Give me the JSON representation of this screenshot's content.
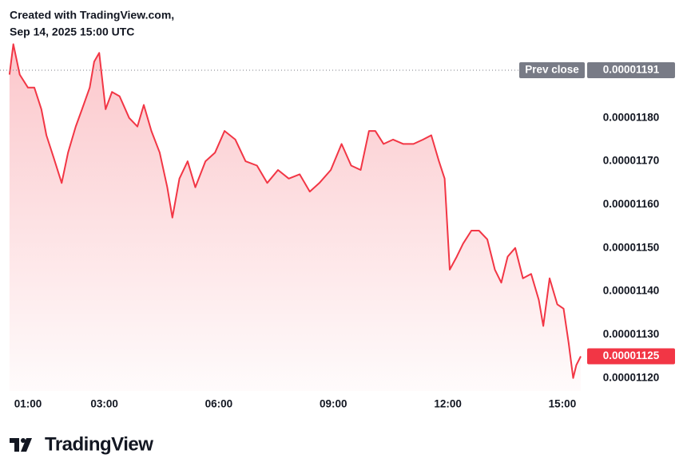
{
  "chart_data": {
    "type": "line",
    "title": "Created with TradingView.com,",
    "subtitle": "Sep 14, 2025 15:00 UTC",
    "watermark": "TradingView",
    "x": [
      "00:31",
      "00:37",
      "00:47",
      "01:00",
      "01:10",
      "01:21",
      "01:29",
      "01:40",
      "01:53",
      "02:03",
      "02:15",
      "02:25",
      "02:37",
      "02:44",
      "02:52",
      "03:02",
      "03:12",
      "03:24",
      "03:39",
      "03:52",
      "04:02",
      "04:14",
      "04:27",
      "04:39",
      "04:47",
      "04:58",
      "05:11",
      "05:23",
      "05:39",
      "05:54",
      "06:09",
      "06:26",
      "06:42",
      "07:00",
      "07:16",
      "07:33",
      "07:50",
      "08:07",
      "08:23",
      "08:38",
      "08:56",
      "09:13",
      "09:28",
      "09:43",
      "09:56",
      "10:06",
      "10:19",
      "10:34",
      "10:50",
      "11:06",
      "11:21",
      "11:34",
      "11:46",
      "11:55",
      "12:03",
      "12:14",
      "12:24",
      "12:37",
      "12:49",
      "13:02",
      "13:14",
      "13:24",
      "13:34",
      "13:46",
      "13:58",
      "14:11",
      "14:23",
      "14:30",
      "14:40",
      "14:52",
      "15:02",
      "15:10",
      "15:17",
      "15:22",
      "15:29"
    ],
    "series": [
      {
        "name": "Price",
        "color": "#f23645",
        "values": [
          1.19e-05,
          1.197e-05,
          1.19e-05,
          1.187e-05,
          1.187e-05,
          1.182e-05,
          1.176e-05,
          1.171e-05,
          1.165e-05,
          1.172e-05,
          1.178e-05,
          1.182e-05,
          1.187e-05,
          1.193e-05,
          1.195e-05,
          1.182e-05,
          1.186e-05,
          1.185e-05,
          1.18e-05,
          1.178e-05,
          1.183e-05,
          1.177e-05,
          1.172e-05,
          1.164e-05,
          1.157e-05,
          1.166e-05,
          1.17e-05,
          1.164e-05,
          1.17e-05,
          1.172e-05,
          1.177e-05,
          1.175e-05,
          1.17e-05,
          1.169e-05,
          1.165e-05,
          1.168e-05,
          1.166e-05,
          1.167e-05,
          1.163e-05,
          1.165e-05,
          1.168e-05,
          1.174e-05,
          1.169e-05,
          1.168e-05,
          1.177e-05,
          1.177e-05,
          1.174e-05,
          1.175e-05,
          1.174e-05,
          1.174e-05,
          1.175e-05,
          1.176e-05,
          1.17e-05,
          1.166e-05,
          1.145e-05,
          1.148e-05,
          1.151e-05,
          1.154e-05,
          1.154e-05,
          1.152e-05,
          1.145e-05,
          1.142e-05,
          1.148e-05,
          1.15e-05,
          1.143e-05,
          1.144e-05,
          1.138e-05,
          1.132e-05,
          1.143e-05,
          1.137e-05,
          1.136e-05,
          1.128e-05,
          1.12e-05,
          1.123e-05,
          1.125e-05
        ]
      }
    ],
    "xlim": [
      "00:16",
      "15:39"
    ],
    "xticks": [
      "01:00",
      "03:00",
      "06:00",
      "09:00",
      "12:00",
      "15:00"
    ],
    "ylim": [
      1.117e-05,
      1.198e-05
    ],
    "yticks": [
      {
        "value": 1.12e-05,
        "label": "0.00001120"
      },
      {
        "value": 1.13e-05,
        "label": "0.00001130"
      },
      {
        "value": 1.14e-05,
        "label": "0.00001140"
      },
      {
        "value": 1.15e-05,
        "label": "0.00001150"
      },
      {
        "value": 1.16e-05,
        "label": "0.00001160"
      },
      {
        "value": 1.17e-05,
        "label": "0.00001170"
      },
      {
        "value": 1.18e-05,
        "label": "0.00001180"
      }
    ],
    "prev_close": {
      "name": "Prev close",
      "value": 1.191e-05,
      "label": "0.00001191",
      "color": "#787b86"
    },
    "last_price": {
      "value": 1.125e-05,
      "label": "0.00001125",
      "color": "#f23645"
    }
  }
}
